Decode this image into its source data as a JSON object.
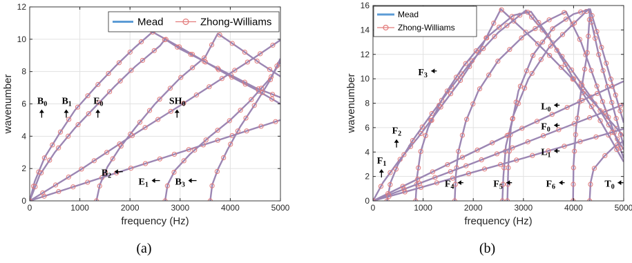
{
  "chart_data": [
    {
      "type": "line",
      "panel_label": "(a)",
      "xlabel": "frequency (Hz)",
      "ylabel": "wavenumber",
      "xlim": [
        0,
        5000
      ],
      "ylim": [
        0,
        12
      ],
      "xticks": [
        0,
        1000,
        2000,
        3000,
        4000,
        5000
      ],
      "yticks": [
        0,
        2,
        4,
        6,
        8,
        10,
        12
      ],
      "grid": true,
      "legend": {
        "placement": "top-right",
        "entries": [
          "Mead",
          "Zhong-Williams"
        ]
      },
      "series_styles": {
        "Mead": "#5b9bd5",
        "Zhong-Williams": "#e27a7a",
        "overlap": "#9b86b3"
      },
      "curves": [
        {
          "points": [
            [
              0,
              0
            ],
            [
              100,
              1.2
            ],
            [
              300,
              2.7
            ],
            [
              600,
              4.2
            ],
            [
              900,
              5.6
            ],
            [
              1300,
              7.0
            ],
            [
              1700,
              8.3
            ],
            [
              2100,
              9.5
            ],
            [
              2450,
              10.45
            ],
            [
              3000,
              9.5
            ],
            [
              3500,
              8.6
            ],
            [
              4000,
              7.7
            ],
            [
              4500,
              6.9
            ],
            [
              5000,
              6.0
            ]
          ]
        },
        {
          "points": [
            [
              0,
              0
            ],
            [
              200,
              1.6
            ],
            [
              500,
              3.0
            ],
            [
              900,
              4.5
            ],
            [
              1300,
              5.8
            ],
            [
              1700,
              7.1
            ],
            [
              2100,
              8.3
            ],
            [
              2600,
              9.6
            ],
            [
              2700,
              10.0
            ],
            [
              3000,
              9.4
            ],
            [
              3500,
              8.6
            ],
            [
              4000,
              7.8
            ],
            [
              4500,
              7.0
            ],
            [
              5000,
              6.4
            ]
          ]
        },
        {
          "points": [
            [
              0,
              0
            ],
            [
              1000,
              1.9
            ],
            [
              2000,
              3.95
            ],
            [
              3000,
              5.9
            ],
            [
              4000,
              7.9
            ],
            [
              4500,
              8.9
            ],
            [
              5000,
              9.95
            ]
          ]
        },
        {
          "points": [
            [
              0,
              0
            ],
            [
              1000,
              1.0
            ],
            [
              2000,
              2.0
            ],
            [
              3000,
              3.0
            ],
            [
              4000,
              4.0
            ],
            [
              5000,
              5.0
            ]
          ]
        },
        {
          "points": [
            [
              1330,
              0
            ],
            [
              1400,
              1.0
            ],
            [
              1550,
              2.1
            ],
            [
              1800,
              3.3
            ],
            [
              2100,
              4.5
            ],
            [
              2500,
              6.0
            ],
            [
              3000,
              7.6
            ],
            [
              3500,
              8.9
            ],
            [
              3750,
              10.35
            ],
            [
              4200,
              9.4
            ],
            [
              4600,
              8.5
            ],
            [
              5000,
              7.7
            ]
          ]
        },
        {
          "points": [
            [
              2700,
              0
            ],
            [
              2750,
              1.0
            ],
            [
              2900,
              1.9
            ],
            [
              3200,
              2.9
            ],
            [
              3600,
              4.0
            ],
            [
              4000,
              5.0
            ],
            [
              4400,
              6.2
            ],
            [
              4800,
              7.6
            ],
            [
              5000,
              8.6
            ]
          ]
        },
        {
          "points": [
            [
              3600,
              0
            ],
            [
              3640,
              1.0
            ],
            [
              3760,
              2.0
            ],
            [
              3950,
              3.2
            ],
            [
              4200,
              4.6
            ],
            [
              4500,
              6.0
            ],
            [
              4800,
              7.5
            ],
            [
              5000,
              8.8
            ]
          ]
        }
      ],
      "annotations": [
        {
          "label": "B",
          "sub": "0",
          "x": 150,
          "y": 6.0,
          "arrow": "up"
        },
        {
          "label": "B",
          "sub": "1",
          "x": 640,
          "y": 6.0,
          "arrow": "up"
        },
        {
          "label": "E",
          "sub": "0",
          "x": 1270,
          "y": 6.0,
          "arrow": "up"
        },
        {
          "label": "SH",
          "sub": "0",
          "x": 2780,
          "y": 6.0,
          "arrow": "up"
        },
        {
          "label": "B",
          "sub": "2",
          "x": 1430,
          "y": 1.55,
          "arrow": "left"
        },
        {
          "label": "E",
          "sub": "1",
          "x": 2170,
          "y": 1.0,
          "arrow": "left"
        },
        {
          "label": "B",
          "sub": "3",
          "x": 2900,
          "y": 1.0,
          "arrow": "left"
        }
      ]
    },
    {
      "type": "line",
      "panel_label": "(b)",
      "xlabel": "frequency (Hz)",
      "ylabel": "wavenumber",
      "xlim": [
        0,
        5000
      ],
      "ylim": [
        0,
        16
      ],
      "xticks": [
        0,
        1000,
        2000,
        3000,
        4000,
        5000
      ],
      "yticks": [
        0,
        2,
        4,
        6,
        8,
        10,
        12,
        14,
        16
      ],
      "grid": true,
      "legend": {
        "placement": "top-left",
        "entries": [
          "Mead",
          "Zhong-Williams"
        ]
      },
      "series_styles": {
        "Mead": "#5b9bd5",
        "Zhong-Williams": "#e27a7a",
        "overlap": "#9b86b3"
      },
      "curves": [
        {
          "points": [
            [
              0,
              0
            ],
            [
              200,
              1.5
            ],
            [
              500,
              3.2
            ],
            [
              900,
              5.2
            ],
            [
              1300,
              7.4
            ],
            [
              1700,
              9.6
            ],
            [
              2100,
              12.1
            ],
            [
              2550,
              15.7
            ],
            [
              3000,
              14.0
            ],
            [
              3500,
              12.0
            ],
            [
              4000,
              9.9
            ],
            [
              4500,
              7.6
            ],
            [
              5000,
              5.3
            ]
          ]
        },
        {
          "points": [
            [
              280,
              0
            ],
            [
              350,
              1.5
            ],
            [
              500,
              3.0
            ],
            [
              800,
              5.0
            ],
            [
              1200,
              7.3
            ],
            [
              1600,
              9.5
            ],
            [
              2000,
              11.6
            ],
            [
              2500,
              13.8
            ],
            [
              3050,
              15.6
            ],
            [
              3500,
              13.4
            ],
            [
              4000,
              10.5
            ],
            [
              4500,
              7.6
            ],
            [
              5000,
              4.2
            ]
          ]
        },
        {
          "points": [
            [
              850,
              0
            ],
            [
              880,
              2.0
            ],
            [
              950,
              4.0
            ],
            [
              1100,
              6.0
            ],
            [
              1400,
              8.5
            ],
            [
              1800,
              11.0
            ],
            [
              2300,
              13.5
            ],
            [
              2800,
              15.2
            ],
            [
              3150,
              15.5
            ],
            [
              3500,
              13.5
            ],
            [
              4000,
              10.0
            ],
            [
              4500,
              6.8
            ],
            [
              5000,
              3.2
            ]
          ]
        },
        {
          "points": [
            [
              1630,
              0
            ],
            [
              1650,
              2.0
            ],
            [
              1700,
              4.0
            ],
            [
              1850,
              6.5
            ],
            [
              2100,
              9.0
            ],
            [
              2500,
              11.5
            ],
            [
              3000,
              13.5
            ],
            [
              3500,
              14.8
            ],
            [
              3850,
              15.5
            ],
            [
              4150,
              13.0
            ],
            [
              4500,
              9.0
            ],
            [
              5000,
              3.5
            ]
          ]
        },
        {
          "points": [
            [
              2580,
              0
            ],
            [
              2600,
              2.0
            ],
            [
              2650,
              4.5
            ],
            [
              2800,
              7.0
            ],
            [
              3100,
              10.0
            ],
            [
              3500,
              12.5
            ],
            [
              4000,
              14.5
            ],
            [
              4300,
              15.7
            ],
            [
              4500,
              12.0
            ],
            [
              4800,
              7.5
            ],
            [
              5000,
              4.5
            ]
          ]
        },
        {
          "points": [
            [
              2680,
              0
            ],
            [
              2700,
              3.0
            ],
            [
              2750,
              6.0
            ],
            [
              2900,
              9.0
            ],
            [
              3200,
              12.0
            ],
            [
              3600,
              14.2
            ],
            [
              4000,
              15.3
            ],
            [
              4330,
              15.7
            ],
            [
              4600,
              12.0
            ],
            [
              5000,
              6.4
            ]
          ]
        },
        {
          "points": [
            [
              3990,
              0
            ],
            [
              4000,
              3.0
            ],
            [
              4050,
              6.0
            ],
            [
              4150,
              9.0
            ],
            [
              4270,
              12.0
            ],
            [
              4330,
              15.7
            ]
          ]
        },
        {
          "points": [
            [
              4320,
              0
            ],
            [
              4340,
              1.5
            ],
            [
              4400,
              2.6
            ],
            [
              4600,
              3.6
            ],
            [
              4800,
              4.4
            ],
            [
              5000,
              4.9
            ]
          ]
        },
        {
          "points": [
            [
              0,
              0
            ],
            [
              1000,
              2.0
            ],
            [
              2000,
              4.0
            ],
            [
              3000,
              6.0
            ],
            [
              4000,
              7.9
            ],
            [
              5000,
              9.8
            ]
          ]
        },
        {
          "points": [
            [
              0,
              0
            ],
            [
              1000,
              1.55
            ],
            [
              2000,
              3.1
            ],
            [
              3000,
              4.7
            ],
            [
              4000,
              6.3
            ],
            [
              5000,
              7.9
            ]
          ]
        },
        {
          "points": [
            [
              0,
              0
            ],
            [
              1000,
              1.15
            ],
            [
              2000,
              2.35
            ],
            [
              3000,
              3.5
            ],
            [
              4000,
              4.7
            ],
            [
              5000,
              5.9
            ]
          ]
        }
      ],
      "annotations": [
        {
          "label": "F",
          "sub": "3",
          "x": 900,
          "y": 10.3,
          "arrow": "right"
        },
        {
          "label": "F",
          "sub": "2",
          "x": 380,
          "y": 5.5,
          "arrow": "up"
        },
        {
          "label": "F",
          "sub": "1",
          "x": 80,
          "y": 3.05,
          "arrow": "up"
        },
        {
          "label": "L",
          "sub": "0",
          "x": 3350,
          "y": 7.5,
          "arrow": "right"
        },
        {
          "label": "F",
          "sub": "0",
          "x": 3350,
          "y": 5.85,
          "arrow": "right"
        },
        {
          "label": "L",
          "sub": "1",
          "x": 3350,
          "y": 3.75,
          "arrow": "right"
        },
        {
          "label": "F",
          "sub": "4",
          "x": 1430,
          "y": 1.15,
          "arrow": "right"
        },
        {
          "label": "F",
          "sub": "5",
          "x": 2400,
          "y": 1.15,
          "arrow": "right"
        },
        {
          "label": "F",
          "sub": "6",
          "x": 3450,
          "y": 1.15,
          "arrow": "right"
        },
        {
          "label": "T",
          "sub": "0",
          "x": 4620,
          "y": 1.15,
          "arrow": "right"
        }
      ]
    }
  ]
}
